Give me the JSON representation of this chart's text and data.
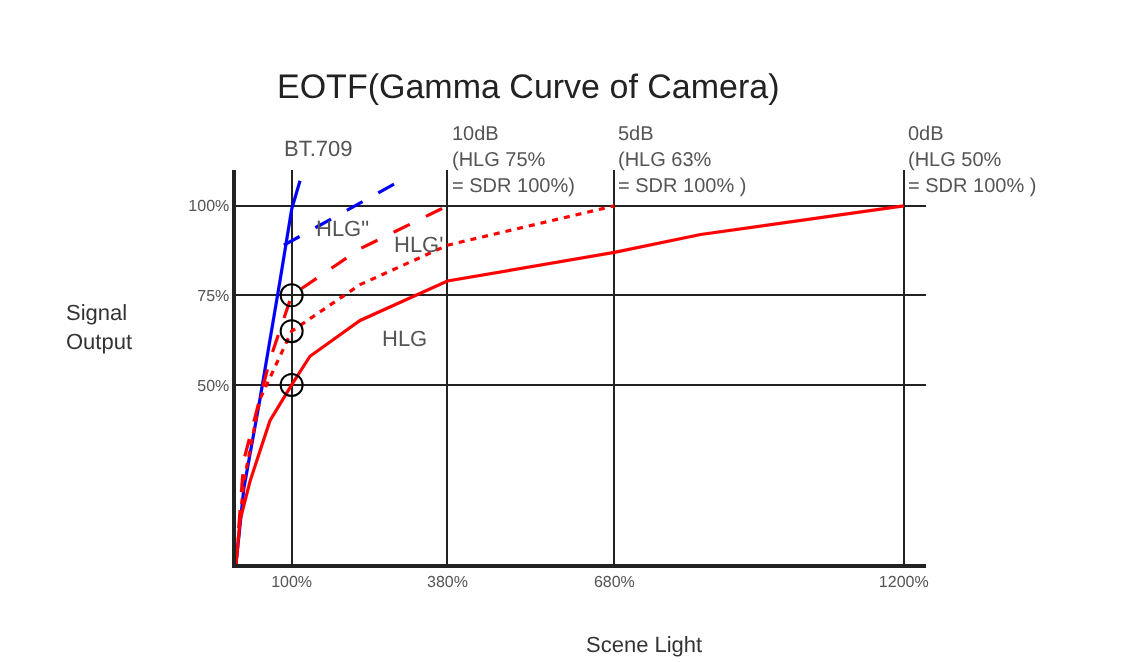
{
  "chart_data": {
    "type": "line",
    "title": "EOTF(Gamma Curve of Camera)",
    "xlabel": "Scene Light",
    "ylabel": "Signal\nOutput",
    "xlim": [
      0,
      1240
    ],
    "ylim": [
      0,
      110
    ],
    "xticks": [
      {
        "value": 100,
        "label": "100%"
      },
      {
        "value": 380,
        "label": "380%"
      },
      {
        "value": 680,
        "label": "680%"
      },
      {
        "value": 1200,
        "label": "1200%"
      }
    ],
    "yticks": [
      {
        "value": 0,
        "label": null
      },
      {
        "value": 50,
        "label": "50%"
      },
      {
        "value": 75,
        "label": "75%"
      },
      {
        "value": 100,
        "label": "100%"
      }
    ],
    "grid": true,
    "marker": "none",
    "series": [
      {
        "color": "#0000ff",
        "line_style": "solid",
        "x": [
          0,
          14,
          43,
          79,
          100,
          115
        ],
        "values": [
          0,
          21,
          46,
          79,
          99,
          107
        ]
      },
      {
        "color": "#0000ff",
        "line_style": "dashed",
        "x": [
          86,
          295
        ],
        "values": [
          89,
          107
        ]
      },
      {
        "color": "#ff0000",
        "line_style": "dashed",
        "x": [
          0,
          14,
          61,
          100,
          223,
          380
        ],
        "values": [
          0,
          29,
          57,
          75,
          88,
          100
        ]
      },
      {
        "color": "#ff0000",
        "line_style": "dotted",
        "x": [
          0,
          14,
          43,
          100,
          223,
          380,
          680
        ],
        "values": [
          0,
          23,
          46,
          65,
          78,
          89,
          100
        ]
      },
      {
        "color": "#ff0000",
        "line_style": "solid",
        "x": [
          0,
          7,
          25,
          61,
          100,
          133,
          223,
          380,
          680,
          835,
          1200
        ],
        "values": [
          0,
          12,
          23,
          40,
          50,
          58,
          68,
          79,
          87,
          92,
          100
        ]
      },
      {
        "type": "scatter",
        "marker": "circle",
        "color": "#000000",
        "x": [
          100,
          100,
          100
        ],
        "values": [
          50,
          65,
          75
        ]
      }
    ],
    "annotations": [
      "BT.709",
      "HLG\"",
      "HLG'",
      "HLG",
      {
        "text": "10dB\n(HLG 75%\n= SDR 100%)",
        "x": 380,
        "y": 101
      },
      {
        "text": "5dB\n(HLG 63%\n= SDR 100% )",
        "x": 680,
        "y": 101
      },
      {
        "text": "0dB\n(HLG 50%\n= SDR 100% )",
        "x": 1200,
        "y": 101
      }
    ]
  }
}
